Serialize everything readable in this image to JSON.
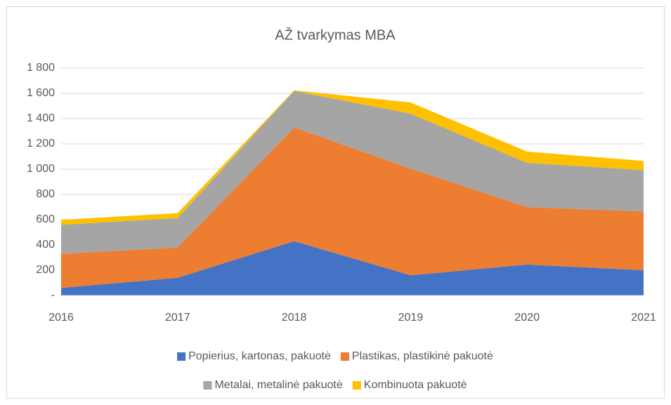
{
  "chart_data": {
    "type": "stacked_area",
    "title": "AŽ tvarkymas MBA",
    "categories": [
      "2016",
      "2017",
      "2018",
      "2019",
      "2020",
      "2021"
    ],
    "series": [
      {
        "name": "Popierius, kartonas, pakuotė",
        "color": "#4472c4",
        "values": [
          60,
          140,
          430,
          160,
          245,
          200
        ]
      },
      {
        "name": "Plastikas, plastikinė pakuotė",
        "color": "#ed7d31",
        "values": [
          270,
          240,
          900,
          845,
          455,
          465
        ]
      },
      {
        "name": "Metalai, metalinė pakuotė",
        "color": "#a5a5a5",
        "values": [
          230,
          233,
          289,
          434,
          350,
          327
        ]
      },
      {
        "name": "Kombinuota pakuotė",
        "color": "#ffc000",
        "values": [
          39,
          39,
          5,
          89,
          89,
          73
        ]
      }
    ],
    "ylim": [
      0,
      1800
    ],
    "yticks": [
      {
        "value": 0,
        "label": "-"
      },
      200,
      400,
      600,
      800,
      {
        "value": 1000,
        "label": "1 000"
      },
      {
        "value": 1200,
        "label": "1 200"
      },
      {
        "value": 1400,
        "label": "1 400"
      },
      {
        "value": 1600,
        "label": "1 600"
      },
      {
        "value": 1800,
        "label": "1 800"
      }
    ],
    "grid": true,
    "legend": "bottom"
  }
}
